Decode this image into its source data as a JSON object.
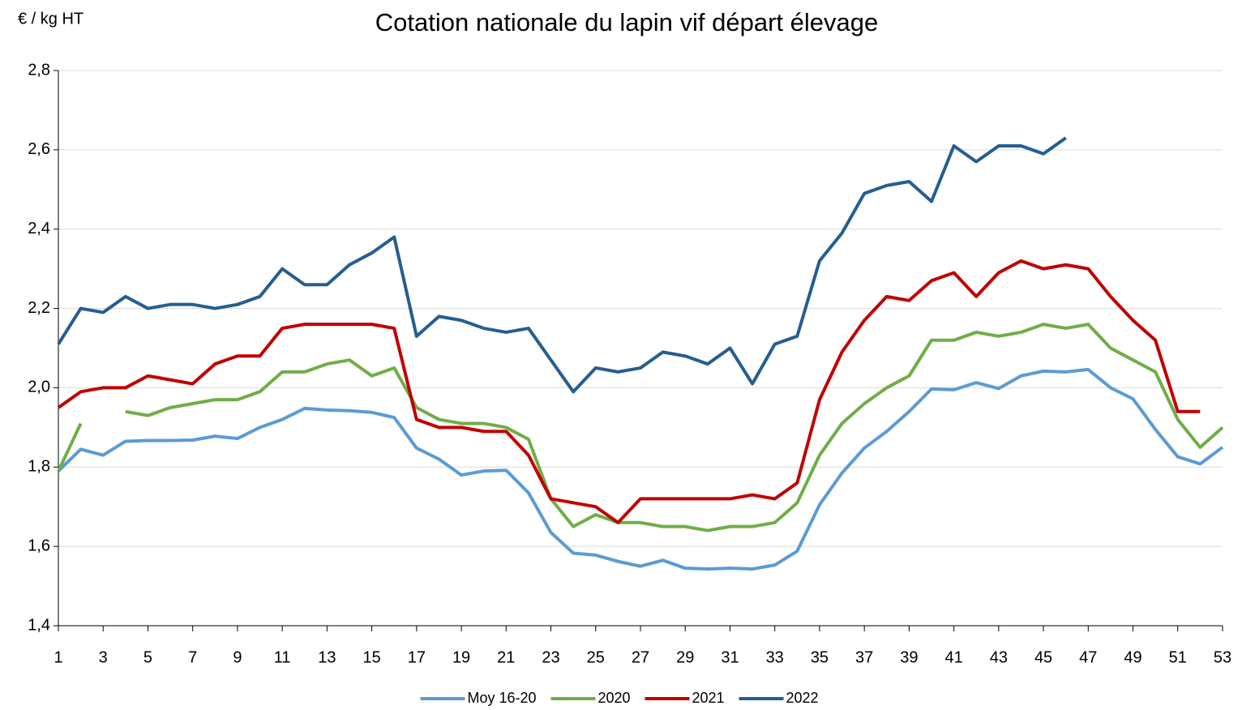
{
  "chart_data": {
    "type": "line",
    "title": "Cotation nationale du lapin vif départ élevage",
    "y_label": "€ / kg HT",
    "x": [
      1,
      2,
      3,
      4,
      5,
      6,
      7,
      8,
      9,
      10,
      11,
      12,
      13,
      14,
      15,
      16,
      17,
      18,
      19,
      20,
      21,
      22,
      23,
      24,
      25,
      26,
      27,
      28,
      29,
      30,
      31,
      32,
      33,
      34,
      35,
      36,
      37,
      38,
      39,
      40,
      41,
      42,
      43,
      44,
      45,
      46,
      47,
      48,
      49,
      50,
      51,
      52,
      53
    ],
    "xlim": [
      1,
      53
    ],
    "xticks": [
      1,
      3,
      5,
      7,
      9,
      11,
      13,
      15,
      17,
      19,
      21,
      23,
      25,
      27,
      29,
      31,
      33,
      35,
      37,
      39,
      41,
      43,
      45,
      47,
      49,
      51,
      53
    ],
    "ylim": [
      1.4,
      2.8
    ],
    "yticks": [
      {
        "value": 1.4,
        "label": "1,4"
      },
      {
        "value": 1.6,
        "label": "1,6"
      },
      {
        "value": 1.8,
        "label": "1,8"
      },
      {
        "value": 2.0,
        "label": "2,0"
      },
      {
        "value": 2.2,
        "label": "2,2"
      },
      {
        "value": 2.4,
        "label": "2,4"
      },
      {
        "value": 2.6,
        "label": "2,6"
      },
      {
        "value": 2.8,
        "label": "2,8"
      }
    ],
    "grid": true,
    "legend": "bottom",
    "series": [
      {
        "name": "Moy 16-20",
        "color": "#5b9bd5",
        "values": [
          1.79,
          1.845,
          1.83,
          1.865,
          1.867,
          1.867,
          1.868,
          1.878,
          1.872,
          1.9,
          1.92,
          1.948,
          1.944,
          1.942,
          1.938,
          1.925,
          1.848,
          1.82,
          1.78,
          1.79,
          1.792,
          1.735,
          1.635,
          1.583,
          1.578,
          1.562,
          1.55,
          1.565,
          1.545,
          1.543,
          1.545,
          1.543,
          1.553,
          1.588,
          1.705,
          1.785,
          1.848,
          1.89,
          1.94,
          1.997,
          1.995,
          2.013,
          1.998,
          2.03,
          2.042,
          2.04,
          2.046,
          2.0,
          1.972,
          1.895,
          1.826,
          1.808,
          1.85
        ]
      },
      {
        "name": "2020",
        "color": "#70ad47",
        "values": [
          1.79,
          1.91,
          null,
          1.94,
          1.93,
          1.95,
          1.96,
          1.97,
          1.97,
          1.99,
          2.04,
          2.04,
          2.06,
          2.07,
          2.03,
          2.05,
          1.95,
          1.92,
          1.91,
          1.91,
          1.9,
          1.87,
          1.72,
          1.65,
          1.68,
          1.66,
          1.66,
          1.65,
          1.65,
          1.64,
          1.65,
          1.65,
          1.66,
          1.71,
          1.83,
          1.91,
          1.96,
          2.0,
          2.03,
          2.12,
          2.12,
          2.14,
          2.13,
          2.14,
          2.16,
          2.15,
          2.16,
          2.1,
          2.07,
          2.04,
          1.92,
          1.85,
          1.9
        ]
      },
      {
        "name": "2021",
        "color": "#c00000",
        "values": [
          1.95,
          1.99,
          2.0,
          2.0,
          2.03,
          2.02,
          2.01,
          2.06,
          2.08,
          2.08,
          2.15,
          2.16,
          2.16,
          2.16,
          2.16,
          2.15,
          1.92,
          1.9,
          1.9,
          1.89,
          1.89,
          1.83,
          1.72,
          1.71,
          1.7,
          1.66,
          1.72,
          1.72,
          1.72,
          1.72,
          1.72,
          1.73,
          1.72,
          1.76,
          1.97,
          2.09,
          2.17,
          2.23,
          2.22,
          2.27,
          2.29,
          2.23,
          2.29,
          2.32,
          2.3,
          2.31,
          2.3,
          2.23,
          2.17,
          2.12,
          1.94,
          1.94,
          null
        ]
      },
      {
        "name": "2022",
        "color": "#255e91",
        "values": [
          2.11,
          2.2,
          2.19,
          2.23,
          2.2,
          2.21,
          2.21,
          2.2,
          2.21,
          2.23,
          2.3,
          2.26,
          2.26,
          2.31,
          2.34,
          2.38,
          2.13,
          2.18,
          2.17,
          2.15,
          2.14,
          2.15,
          2.07,
          1.99,
          2.05,
          2.04,
          2.05,
          2.09,
          2.08,
          2.06,
          2.1,
          2.01,
          2.11,
          2.13,
          2.32,
          2.39,
          2.49,
          2.51,
          2.52,
          2.47,
          2.61,
          2.57,
          2.61,
          2.61,
          2.59,
          2.63,
          null,
          null,
          null,
          null,
          null,
          null,
          null
        ]
      }
    ]
  }
}
